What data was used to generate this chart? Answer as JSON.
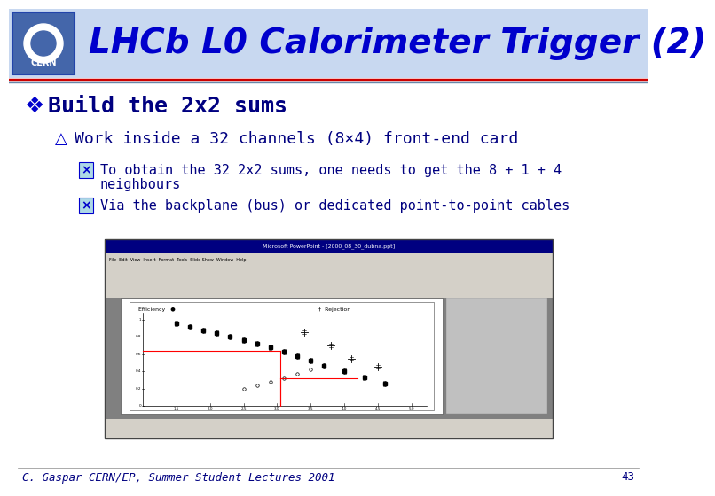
{
  "title": "LHCb L0 Calorimeter Trigger (2)",
  "title_color": "#0000CC",
  "title_fontsize": 28,
  "slide_bg": "#FFFFFF",
  "bullet1": "Build the 2x2 sums",
  "bullet2": "Work inside a 32 channels (8×4) front-end card",
  "bullet3a": "To obtain the 32 2x2 sums, one needs to get the 8 + 1 + 4",
  "bullet3a_line2": "neighbours",
  "bullet3b": "Via the backplane (bus) or dedicated point-to-point cables",
  "footer": "C. Gaspar CERN/EP, Summer Student Lectures 2001",
  "page_number": "43",
  "footer_color": "#000080",
  "text_color": "#000080",
  "accent_color": "#0000CC",
  "cern_box_color": "#4466AA",
  "separator_color1": "#CC0000",
  "separator_color2": "#6688AA",
  "header_bg": "#C8D8F0"
}
